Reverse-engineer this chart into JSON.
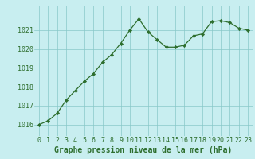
{
  "x": [
    0,
    1,
    2,
    3,
    4,
    5,
    6,
    7,
    8,
    9,
    10,
    11,
    12,
    13,
    14,
    15,
    16,
    17,
    18,
    19,
    20,
    21,
    22,
    23
  ],
  "y": [
    1016.0,
    1016.2,
    1016.6,
    1017.3,
    1017.8,
    1018.3,
    1018.7,
    1019.3,
    1019.7,
    1020.3,
    1021.0,
    1021.6,
    1020.9,
    1020.5,
    1020.1,
    1020.1,
    1020.2,
    1020.7,
    1020.8,
    1021.45,
    1021.5,
    1021.4,
    1021.1,
    1021.0
  ],
  "line_color": "#2d6e2d",
  "marker": "D",
  "marker_size": 2.2,
  "bg_color": "#c8eef0",
  "grid_color": "#88c8c8",
  "xlabel": "Graphe pression niveau de la mer (hPa)",
  "xlabel_fontsize": 7.0,
  "tick_fontsize": 6.0,
  "ylim": [
    1015.4,
    1022.3
  ],
  "xlim": [
    -0.5,
    23.5
  ],
  "yticks": [
    1016,
    1017,
    1018,
    1019,
    1020,
    1021
  ],
  "xticks": [
    0,
    1,
    2,
    3,
    4,
    5,
    6,
    7,
    8,
    9,
    10,
    11,
    12,
    13,
    14,
    15,
    16,
    17,
    18,
    19,
    20,
    21,
    22,
    23
  ]
}
